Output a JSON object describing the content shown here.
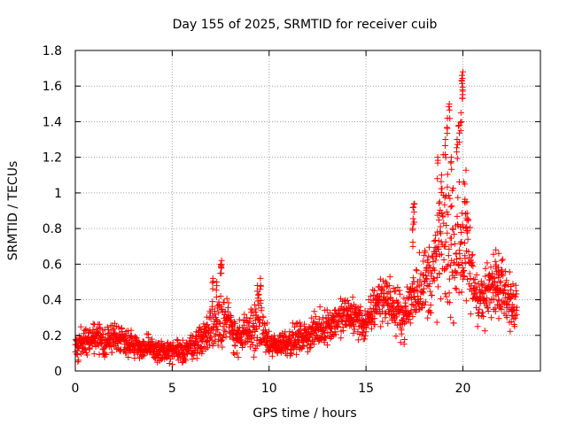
{
  "chart_data": {
    "type": "scatter",
    "title": "Day 155 of 2025, SRMTID for receiver cuib",
    "xlabel": "GPS time / hours",
    "ylabel": "SRMTID / TECUs",
    "xlim": [
      0,
      24
    ],
    "ylim": [
      0,
      1.8
    ],
    "x_ticks": [
      "0",
      "5",
      "10",
      "15",
      "20"
    ],
    "y_ticks": [
      "0",
      "0.2",
      "0.4",
      "0.6",
      "0.8",
      "1",
      "1.2",
      "1.4",
      "1.6",
      "1.8"
    ],
    "grid": true,
    "marker": "+",
    "color": "#ff0000",
    "series": [
      {
        "name": "SRMTID",
        "envelope": [
          [
            0.0,
            0.13,
            0.05
          ],
          [
            0.5,
            0.17,
            0.07
          ],
          [
            1.0,
            0.18,
            0.06
          ],
          [
            1.5,
            0.16,
            0.06
          ],
          [
            2.0,
            0.19,
            0.06
          ],
          [
            2.5,
            0.18,
            0.06
          ],
          [
            3.0,
            0.15,
            0.05
          ],
          [
            3.5,
            0.13,
            0.05
          ],
          [
            4.0,
            0.12,
            0.05
          ],
          [
            4.5,
            0.11,
            0.05
          ],
          [
            5.0,
            0.1,
            0.05
          ],
          [
            5.5,
            0.11,
            0.05
          ],
          [
            6.0,
            0.14,
            0.05
          ],
          [
            6.5,
            0.18,
            0.06
          ],
          [
            7.0,
            0.24,
            0.1
          ],
          [
            7.5,
            0.32,
            0.14
          ],
          [
            8.0,
            0.24,
            0.1
          ],
          [
            8.5,
            0.18,
            0.07
          ],
          [
            9.0,
            0.22,
            0.09
          ],
          [
            9.5,
            0.28,
            0.12
          ],
          [
            10.0,
            0.14,
            0.05
          ],
          [
            10.5,
            0.15,
            0.05
          ],
          [
            11.0,
            0.17,
            0.06
          ],
          [
            11.5,
            0.18,
            0.06
          ],
          [
            12.0,
            0.2,
            0.06
          ],
          [
            12.5,
            0.23,
            0.07
          ],
          [
            13.0,
            0.26,
            0.07
          ],
          [
            13.5,
            0.28,
            0.08
          ],
          [
            14.0,
            0.32,
            0.08
          ],
          [
            14.5,
            0.3,
            0.08
          ],
          [
            15.0,
            0.25,
            0.07
          ],
          [
            15.5,
            0.38,
            0.1
          ],
          [
            16.0,
            0.42,
            0.1
          ],
          [
            16.5,
            0.34,
            0.09
          ],
          [
            17.0,
            0.3,
            0.09
          ],
          [
            17.5,
            0.45,
            0.15
          ],
          [
            18.0,
            0.5,
            0.14
          ],
          [
            18.5,
            0.55,
            0.2
          ],
          [
            19.0,
            0.75,
            0.3
          ],
          [
            19.5,
            0.7,
            0.3
          ],
          [
            20.0,
            0.75,
            0.35
          ],
          [
            20.5,
            0.5,
            0.15
          ],
          [
            21.0,
            0.38,
            0.12
          ],
          [
            21.5,
            0.48,
            0.12
          ],
          [
            22.0,
            0.5,
            0.12
          ],
          [
            22.5,
            0.35,
            0.1
          ],
          [
            22.8,
            0.4,
            0.1
          ]
        ],
        "peaks": [
          [
            7.1,
            0.52
          ],
          [
            7.3,
            0.5
          ],
          [
            7.5,
            0.6
          ],
          [
            7.55,
            0.62
          ],
          [
            9.4,
            0.48
          ],
          [
            9.55,
            0.52
          ],
          [
            17.45,
            0.92
          ],
          [
            17.5,
            0.94
          ],
          [
            17.4,
            0.8
          ],
          [
            18.7,
            1.2
          ],
          [
            18.9,
            1.1
          ],
          [
            18.8,
            0.95
          ],
          [
            19.2,
            1.42
          ],
          [
            19.3,
            1.5
          ],
          [
            19.1,
            1.3
          ],
          [
            19.4,
            1.2
          ],
          [
            19.7,
            1.3
          ],
          [
            19.8,
            1.38
          ],
          [
            19.95,
            1.66
          ],
          [
            20.0,
            1.68
          ],
          [
            19.98,
            1.58
          ],
          [
            19.9,
            1.45
          ],
          [
            20.1,
            1.05
          ],
          [
            20.2,
            0.95
          ],
          [
            21.7,
            0.68
          ],
          [
            21.85,
            0.66
          ],
          [
            22.0,
            0.62
          ]
        ]
      }
    ]
  }
}
